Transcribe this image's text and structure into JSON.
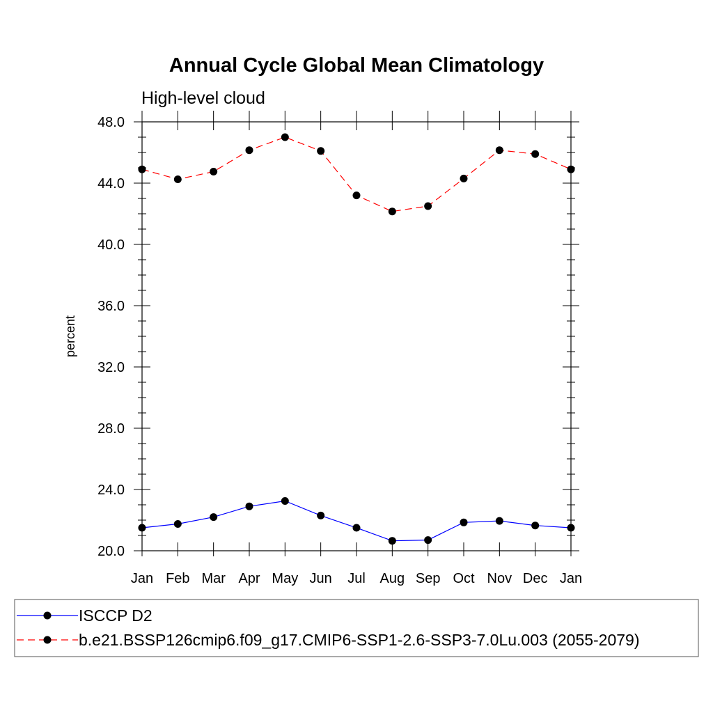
{
  "chart_data": {
    "type": "line",
    "title": "Annual Cycle Global Mean Climatology",
    "subtitle": "High-level cloud",
    "xlabel": "",
    "ylabel": "percent",
    "categories": [
      "Jan",
      "Feb",
      "Mar",
      "Apr",
      "May",
      "Jun",
      "Jul",
      "Aug",
      "Sep",
      "Oct",
      "Nov",
      "Dec",
      "Jan"
    ],
    "ylim": [
      20.0,
      48.0
    ],
    "yticks": [
      "20.0",
      "24.0",
      "28.0",
      "32.0",
      "36.0",
      "40.0",
      "44.0",
      "48.0"
    ],
    "grid": false,
    "legend_position": "bottom",
    "series": [
      {
        "name": "ISCCP D2",
        "color": "#0000ff",
        "dashed": false,
        "values": [
          21.5,
          21.75,
          22.2,
          22.9,
          23.25,
          22.3,
          21.5,
          20.65,
          20.7,
          21.85,
          21.95,
          21.65,
          21.5
        ]
      },
      {
        "name": "b.e21.BSSP126cmip6.f09_g17.CMIP6-SSP1-2.6-SSP3-7.0Lu.003 (2055-2079)",
        "color": "#ff0000",
        "dashed": true,
        "values": [
          44.9,
          44.25,
          44.75,
          46.15,
          47.0,
          46.1,
          43.2,
          42.15,
          42.5,
          44.3,
          46.15,
          45.9,
          44.9
        ]
      }
    ]
  }
}
